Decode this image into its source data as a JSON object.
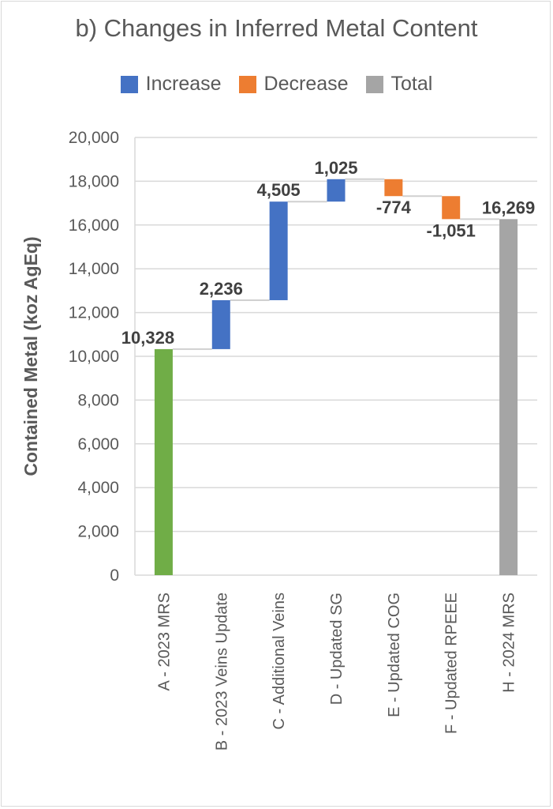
{
  "chart_data": {
    "type": "bar",
    "subtype": "waterfall",
    "title": "b) Changes in Inferred Metal Content",
    "xlabel": "",
    "ylabel": "Contained Metal (koz AgEq)",
    "ylim": [
      0,
      20000
    ],
    "yticks": [
      0,
      2000,
      4000,
      6000,
      8000,
      10000,
      12000,
      14000,
      16000,
      18000,
      20000
    ],
    "ytick_labels": [
      "0",
      "2,000",
      "4,000",
      "6,000",
      "8,000",
      "10,000",
      "12,000",
      "14,000",
      "16,000",
      "18,000",
      "20,000"
    ],
    "grid": true,
    "legend_position": "top",
    "legend": [
      {
        "name": "Increase",
        "color": "#4472C4"
      },
      {
        "name": "Decrease",
        "color": "#ED7D31"
      },
      {
        "name": "Total",
        "color": "#A5A5A5"
      }
    ],
    "categories": [
      "A - 2023 MRS",
      "B - 2023 Veins Update",
      "C - Additional Veins",
      "D - Updated SG",
      "E - Updated COG",
      "F - Updated RPEEE",
      "H - 2024 MRS"
    ],
    "values": [
      10328,
      2236,
      4505,
      1025,
      -774,
      -1051,
      16269
    ],
    "kinds": [
      "start",
      "increase",
      "increase",
      "increase",
      "decrease",
      "decrease",
      "total"
    ],
    "data_labels": [
      "10,328",
      "2,236",
      "4,505",
      "1,025",
      "-774",
      "-1,051",
      "16,269"
    ],
    "colors": {
      "start": "#70AD47",
      "increase": "#4472C4",
      "decrease": "#ED7D31",
      "total": "#A5A5A5"
    }
  }
}
